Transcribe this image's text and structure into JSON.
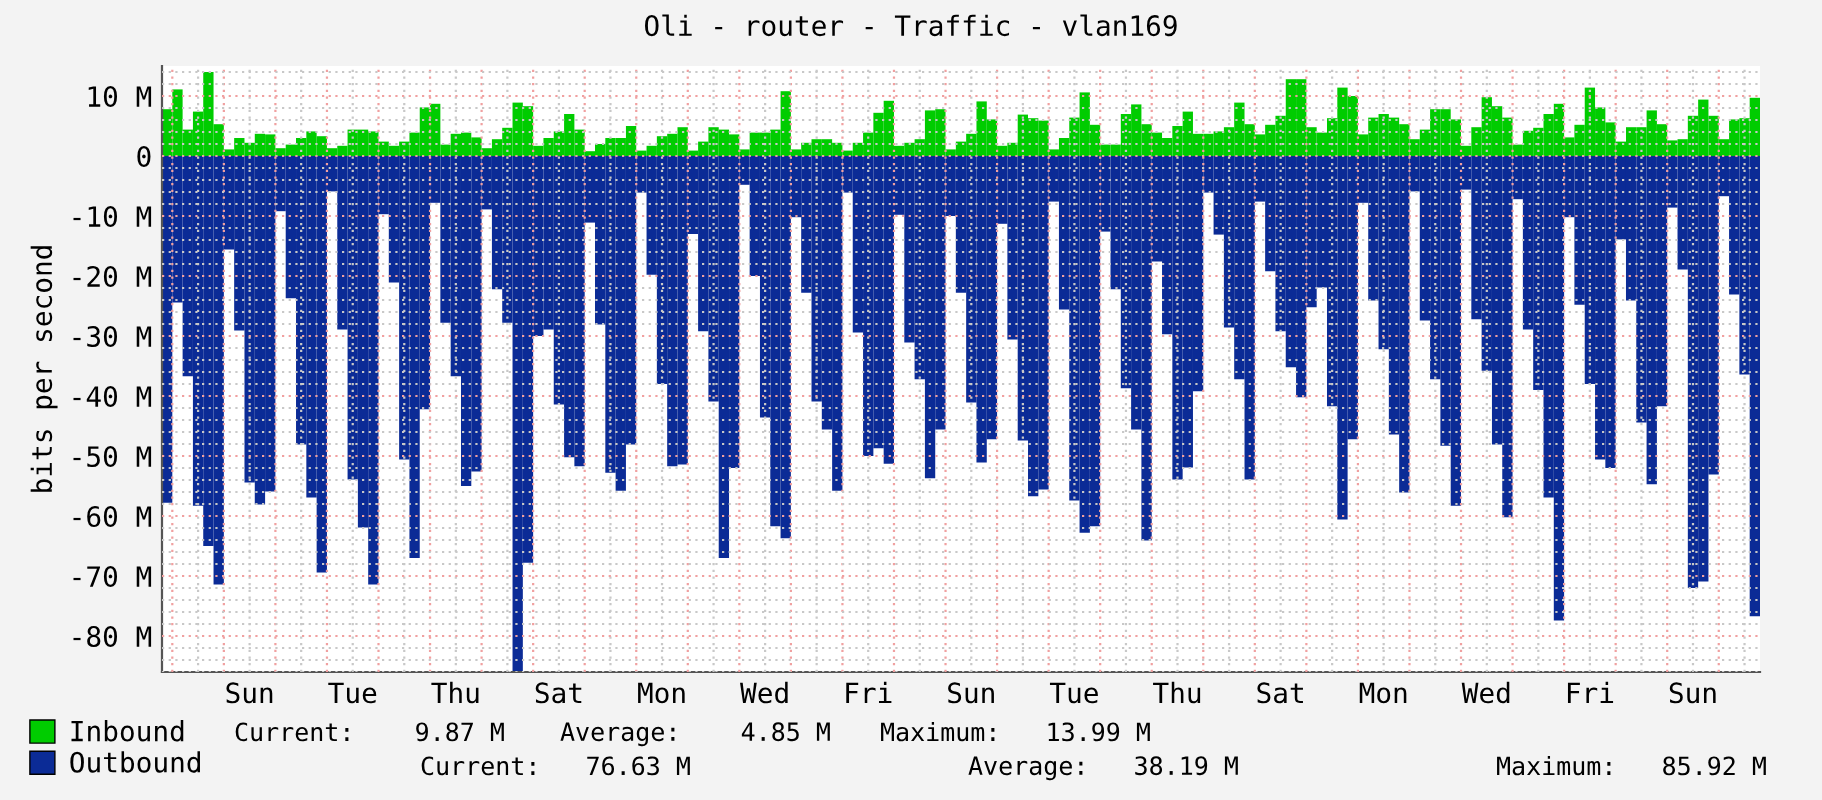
{
  "chart_data": {
    "type": "bar",
    "title": "Oli - router - Traffic - vlan169",
    "ylabel": "bits per second",
    "categories": [
      null,
      null,
      null,
      null,
      null,
      null,
      null,
      null,
      "Sun",
      null,
      null,
      null,
      null,
      null,
      null,
      null,
      null,
      null,
      "Tue",
      null,
      null,
      null,
      null,
      null,
      null,
      null,
      null,
      null,
      "Thu",
      null,
      null,
      null,
      null,
      null,
      null,
      null,
      null,
      null,
      "Sat",
      null,
      null,
      null,
      null,
      null,
      null,
      null,
      null,
      null,
      "Mon",
      null,
      null,
      null,
      null,
      null,
      null,
      null,
      null,
      null,
      "Wed",
      null,
      null,
      null,
      null,
      null,
      null,
      null,
      null,
      null,
      "Fri",
      null,
      null,
      null,
      null,
      null,
      null,
      null,
      null,
      null,
      "Sun",
      null,
      null,
      null,
      null,
      null,
      null,
      null,
      null,
      null,
      "Tue",
      null,
      null,
      null,
      null,
      null,
      null,
      null,
      null,
      null,
      "Thu",
      null,
      null,
      null,
      null,
      null,
      null,
      null,
      null,
      null,
      "Sat",
      null,
      null,
      null,
      null,
      null,
      null,
      null,
      null,
      null,
      "Mon",
      null,
      null,
      null,
      null,
      null,
      null,
      null,
      null,
      null,
      "Wed",
      null,
      null,
      null,
      null,
      null,
      null,
      null,
      null,
      null,
      "Fri",
      null,
      null,
      null,
      null,
      null,
      null,
      null,
      null,
      null,
      "Sun",
      null,
      null,
      null,
      null,
      null,
      null
    ],
    "series": [
      {
        "name": "Inbound",
        "color": "#00cc00",
        "values": [
          7.8,
          11.1,
          4.4,
          7.4,
          14.0,
          5.3,
          1.1,
          3,
          2.2,
          3.7,
          3.6,
          1.3,
          1.9,
          3,
          4.1,
          3.3,
          1.3,
          1.7,
          4.4,
          4.4,
          4.1,
          2.4,
          1.7,
          2.4,
          3.9,
          8.1,
          8.7,
          1.9,
          3.7,
          3.9,
          3.1,
          1.3,
          2.8,
          4.7,
          8.9,
          8.3,
          1.7,
          3,
          4.1,
          7,
          4.4,
          0.8,
          2,
          3,
          3,
          5,
          0.9,
          1.7,
          3.3,
          3.7,
          4.8,
          0.9,
          2.4,
          4.8,
          4.4,
          3.6,
          1.1,
          3.9,
          3.9,
          4.4,
          10.8,
          1.1,
          2.2,
          2.8,
          2.8,
          2.2,
          0.9,
          2.2,
          3.9,
          7.2,
          9.2,
          1.7,
          2.2,
          2.8,
          7.6,
          7.8,
          1.1,
          2.4,
          3.7,
          9.1,
          6.1,
          1.7,
          2.2,
          6.9,
          6.3,
          5.9,
          1.1,
          3,
          6.4,
          10.6,
          5.2,
          1.9,
          1.9,
          7,
          8.6,
          5.3,
          3.9,
          3,
          5,
          7.4,
          3.7,
          3.7,
          4.1,
          4.8,
          8.9,
          5.3,
          3.6,
          5.2,
          6.7,
          12.8,
          12.8,
          4.8,
          3.9,
          6.3,
          11.4,
          10,
          3.6,
          6.4,
          7,
          6.4,
          5.3,
          2.8,
          4.4,
          7.8,
          7.8,
          6.1,
          1.7,
          4.8,
          9.8,
          8.3,
          6.4,
          1.9,
          4.2,
          4.7,
          7,
          8.7,
          3.1,
          5.2,
          11.4,
          8.1,
          5.6,
          2.4,
          4.8,
          4.8,
          7.6,
          5.3,
          2.6,
          2.8,
          6.7,
          9.4,
          6.7,
          2.8,
          6.1,
          6.3,
          9.7
        ]
      },
      {
        "name": "Outbound",
        "color": "#0b2b96",
        "values": [
          -57.8,
          -24.4,
          -36.7,
          -58.3,
          -65,
          -71.4,
          -15.6,
          -29.1,
          -54.4,
          -58.1,
          -55.9,
          -9.2,
          -23.7,
          -48.1,
          -56.9,
          -69.4,
          -5.9,
          -28.9,
          -53.9,
          -61.9,
          -71.4,
          -9.7,
          -21.1,
          -50.6,
          -67,
          -42.2,
          -7.8,
          -27.8,
          -36.7,
          -55,
          -52.6,
          -8.9,
          -22.2,
          -27.8,
          -85.9,
          -67.8,
          -30,
          -28.9,
          -41.4,
          -50.2,
          -51.7,
          -11.1,
          -28.1,
          -52.8,
          -55.8,
          -48.1,
          -6.1,
          -19.8,
          -38,
          -51.7,
          -51.4,
          -13,
          -29.2,
          -40.9,
          -67,
          -52,
          -4.8,
          -20,
          -43.6,
          -61.7,
          -63.7,
          -10.2,
          -22.8,
          -40.9,
          -45.6,
          -55.8,
          -6.1,
          -29.4,
          -50,
          -48.7,
          -51.3,
          -9.8,
          -31.1,
          -37.2,
          -53.7,
          -45.6,
          -10,
          -22.8,
          -41.1,
          -51.1,
          -47.2,
          -11.3,
          -30.6,
          -47.4,
          -56.7,
          -55.6,
          -7.6,
          -25.6,
          -57.4,
          -62.8,
          -61.7,
          -12.6,
          -22.2,
          -38.7,
          -45.6,
          -64.1,
          -17.6,
          -29.7,
          -53.9,
          -51.9,
          -39.2,
          -6.1,
          -13.1,
          -28.6,
          -37.2,
          -53.9,
          -7.6,
          -19.2,
          -29.2,
          -35.2,
          -40.2,
          -25.2,
          -21.9,
          -41.7,
          -60.6,
          -47.2,
          -7.8,
          -24.1,
          -32.2,
          -46.4,
          -56.1,
          -5.9,
          -27.4,
          -37.2,
          -48.3,
          -58.3,
          -5.6,
          -27.2,
          -35.8,
          -48.1,
          -60.2,
          -7.2,
          -28.9,
          -39,
          -56.9,
          -77.4,
          -10.2,
          -24.8,
          -38,
          -50.6,
          -52,
          -13.9,
          -24.1,
          -44.4,
          -54.7,
          -41.7,
          -8.6,
          -18.9,
          -72,
          -70.9,
          -53.1,
          -6.7,
          -23.1,
          -36.4,
          -76.7
        ]
      }
    ],
    "ylim": [
      -86,
      15
    ],
    "yticks": [
      {
        "value": 10,
        "label": "10 M"
      },
      0,
      {
        "value": -10,
        "label": "-10 M"
      },
      {
        "value": -20,
        "label": "-20 M"
      },
      {
        "value": -30,
        "label": "-30 M"
      },
      {
        "value": -40,
        "label": "-40 M"
      },
      {
        "value": -50,
        "label": "-50 M"
      },
      {
        "value": -60,
        "label": "-60 M"
      },
      {
        "value": -70,
        "label": "-70 M"
      },
      {
        "value": -80,
        "label": "-80 M"
      }
    ],
    "grid": true,
    "legend": "bottom left",
    "stacked": true,
    "annotations": [
      "Current:    9.87 M",
      "Average:    4.85 M",
      "Maximum:   13.99 M",
      "Current:   76.63 M",
      "Average:   38.19 M",
      "Maximum:   85.92 M"
    ]
  }
}
